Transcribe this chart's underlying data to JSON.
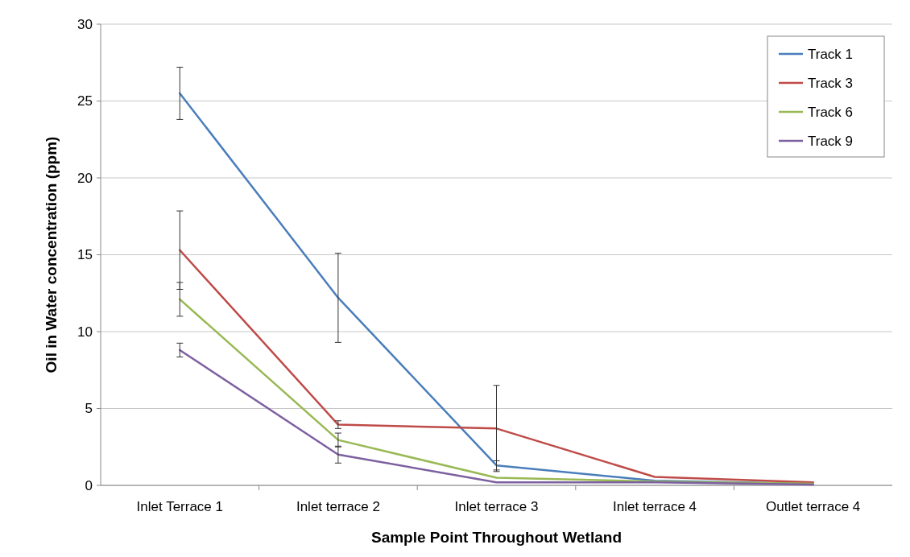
{
  "chart_data": {
    "type": "line",
    "xlabel": "Sample Point Throughout Wetland",
    "ylabel": "Oil in Water concentration (ppm)",
    "categories": [
      "Inlet Terrace 1",
      "Inlet terrace 2",
      "Inlet terrace 3",
      "Inlet terrace 4",
      "Outlet terrace 4"
    ],
    "series": [
      {
        "name": "Track 1",
        "color": "#4a7ebb",
        "values": [
          25.5,
          12.2,
          1.3,
          0.3,
          0.1
        ],
        "errors": [
          1.7,
          2.9,
          0.3,
          null,
          null
        ]
      },
      {
        "name": "Track 3",
        "color": "#be4b48",
        "values": [
          15.3,
          3.95,
          3.7,
          0.55,
          0.2
        ],
        "errors": [
          2.55,
          0.25,
          2.8,
          null,
          null
        ]
      },
      {
        "name": "Track 6",
        "color": "#98b954",
        "values": [
          12.1,
          2.95,
          0.5,
          0.25,
          0.1
        ],
        "errors": [
          1.1,
          0.45,
          null,
          null,
          null
        ]
      },
      {
        "name": "Track 9",
        "color": "#7d60a0",
        "values": [
          8.8,
          2.0,
          0.2,
          0.2,
          0.05
        ],
        "errors": [
          0.45,
          0.55,
          null,
          null,
          null
        ]
      }
    ],
    "ylim": [
      0,
      30
    ],
    "yticks": [
      0,
      5,
      10,
      15,
      20,
      25,
      30
    ],
    "grid": "y",
    "legend": "top right",
    "marker": "none",
    "line_style": "solid"
  }
}
